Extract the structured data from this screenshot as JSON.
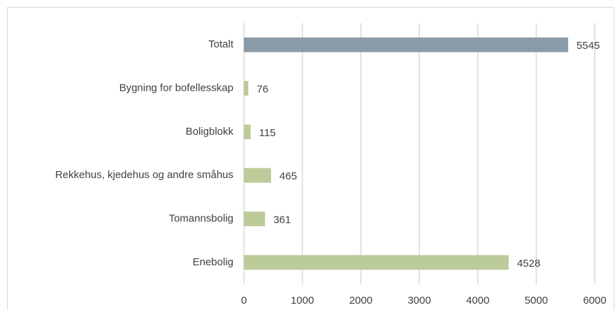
{
  "chart_data": {
    "type": "bar",
    "orientation": "horizontal",
    "categories": [
      "Totalt",
      "Bygning for bofellesskap",
      "Boligblokk",
      "Rekkehus, kjedehus og andre småhus",
      "Tomannsbolig",
      "Enebolig"
    ],
    "values": [
      5545,
      76,
      115,
      465,
      361,
      4528
    ],
    "colors": [
      "#8a9aa6",
      "#bccb9a",
      "#bccb9a",
      "#bccb9a",
      "#bccb9a",
      "#bccb9a"
    ],
    "xlim": [
      0,
      6000
    ],
    "xticks": [
      0,
      1000,
      2000,
      3000,
      4000,
      5000,
      6000
    ],
    "grid": true
  }
}
